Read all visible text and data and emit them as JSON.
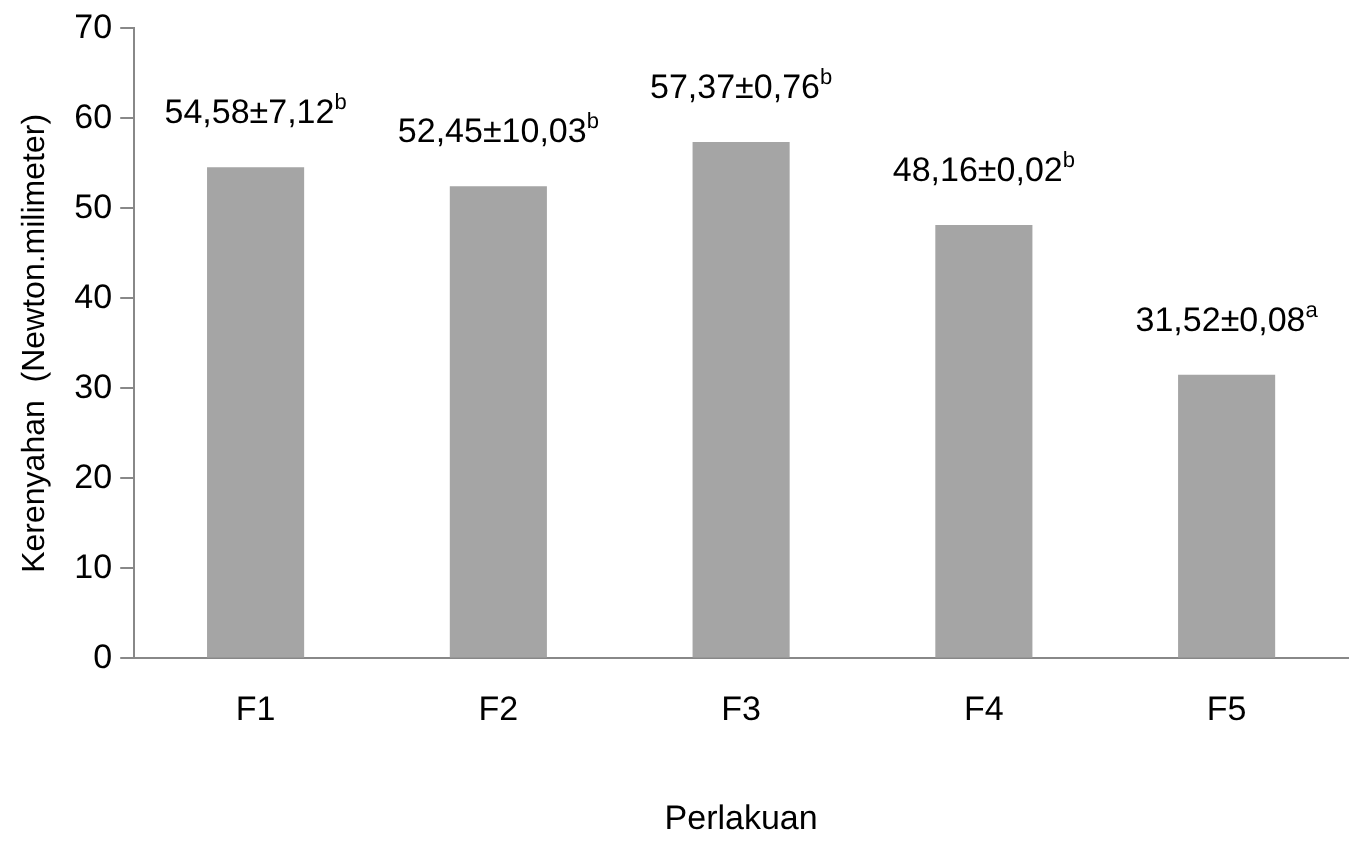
{
  "chart_data": {
    "type": "bar",
    "xlabel": "Perlakuan",
    "ylabel": "Kerenyahan  (Newton.milimeter)",
    "categories": [
      "F1",
      "F2",
      "F3",
      "F4",
      "F5"
    ],
    "values": [
      54.58,
      52.45,
      57.37,
      48.16,
      31.52
    ],
    "value_labels": [
      "54,58±7,12$^{b}$",
      "52,45±10,03$^{b}$",
      "57,37±0,76$^{b}$",
      "48,16±0,02$^{b}$",
      "31,52±0,08$^{a}$"
    ],
    "color": "#a5a5a5",
    "ylim": [
      0,
      70
    ],
    "yticks": [
      0,
      10,
      20,
      30,
      40,
      50,
      60,
      70
    ],
    "grid": false,
    "legend": false
  }
}
